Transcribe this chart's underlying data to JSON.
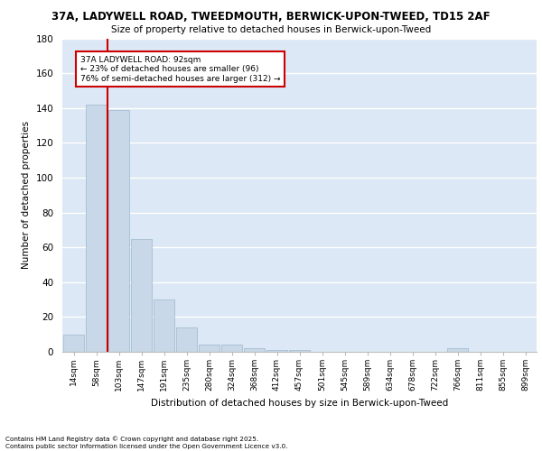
{
  "title1": "37A, LADYWELL ROAD, TWEEDMOUTH, BERWICK-UPON-TWEED, TD15 2AF",
  "title2": "Size of property relative to detached houses in Berwick-upon-Tweed",
  "xlabel": "Distribution of detached houses by size in Berwick-upon-Tweed",
  "ylabel": "Number of detached properties",
  "categories": [
    "14sqm",
    "58sqm",
    "103sqm",
    "147sqm",
    "191sqm",
    "235sqm",
    "280sqm",
    "324sqm",
    "368sqm",
    "412sqm",
    "457sqm",
    "501sqm",
    "545sqm",
    "589sqm",
    "634sqm",
    "678sqm",
    "722sqm",
    "766sqm",
    "811sqm",
    "855sqm",
    "899sqm"
  ],
  "values": [
    10,
    142,
    139,
    65,
    30,
    14,
    4,
    4,
    2,
    1,
    1,
    0,
    0,
    0,
    0,
    0,
    0,
    2,
    0,
    0,
    0
  ],
  "bar_color": "#c8d8e8",
  "bar_edge_color": "#a0b8cc",
  "vline_x": 1.5,
  "vline_color": "#cc0000",
  "annotation_text": "37A LADYWELL ROAD: 92sqm\n← 23% of detached houses are smaller (96)\n76% of semi-detached houses are larger (312) →",
  "annotation_box_color": "#ffffff",
  "annotation_box_edge_color": "#cc0000",
  "ylim": [
    0,
    180
  ],
  "yticks": [
    0,
    20,
    40,
    60,
    80,
    100,
    120,
    140,
    160,
    180
  ],
  "footer1": "Contains HM Land Registry data © Crown copyright and database right 2025.",
  "footer2": "Contains public sector information licensed under the Open Government Licence v3.0.",
  "background_color": "#dce8f5",
  "grid_color": "#ffffff"
}
